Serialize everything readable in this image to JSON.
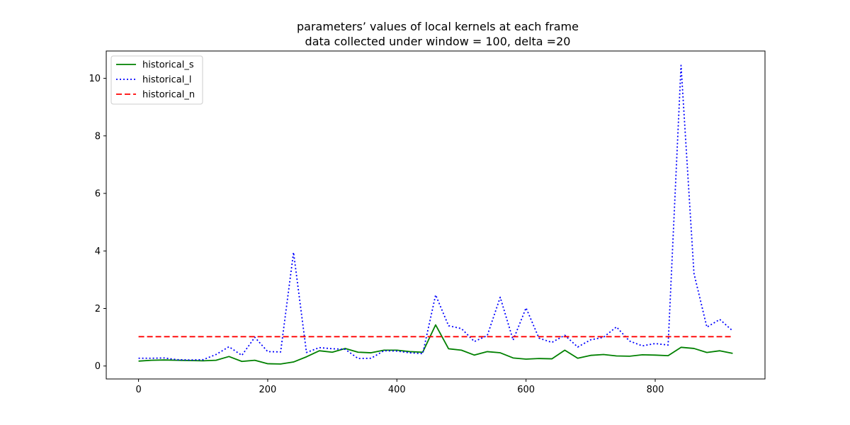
{
  "chart_data": {
    "type": "line",
    "title_lines": [
      "parameters’ values of local kernels at each frame",
      "data collected under window = 100, delta =20"
    ],
    "xlabel": "",
    "ylabel": "",
    "xlim": [
      -50,
      970
    ],
    "ylim": [
      -0.45,
      10.95
    ],
    "xticks": [
      0,
      200,
      400,
      600,
      800
    ],
    "yticks": [
      0,
      2,
      4,
      6,
      8,
      10
    ],
    "grid": false,
    "legend_position": "top-left",
    "x": [
      0,
      20,
      40,
      60,
      80,
      100,
      120,
      140,
      160,
      180,
      200,
      220,
      240,
      260,
      280,
      300,
      320,
      340,
      360,
      380,
      400,
      420,
      440,
      460,
      480,
      500,
      520,
      540,
      560,
      580,
      600,
      620,
      640,
      660,
      680,
      700,
      720,
      740,
      760,
      780,
      800,
      820,
      840,
      860,
      880,
      900,
      920
    ],
    "series": [
      {
        "name": "historical_s",
        "color": "#008000",
        "style": "solid",
        "values": [
          0.17,
          0.2,
          0.21,
          0.2,
          0.19,
          0.18,
          0.2,
          0.33,
          0.16,
          0.2,
          0.08,
          0.07,
          0.14,
          0.32,
          0.53,
          0.48,
          0.61,
          0.48,
          0.46,
          0.55,
          0.55,
          0.5,
          0.48,
          1.43,
          0.6,
          0.55,
          0.38,
          0.5,
          0.46,
          0.28,
          0.24,
          0.26,
          0.25,
          0.55,
          0.27,
          0.37,
          0.4,
          0.35,
          0.34,
          0.39,
          0.38,
          0.36,
          0.65,
          0.61,
          0.47,
          0.53,
          0.44
        ]
      },
      {
        "name": "historical_l",
        "color": "#0000ff",
        "style": "dotted",
        "values": [
          0.27,
          0.27,
          0.28,
          0.22,
          0.21,
          0.22,
          0.4,
          0.67,
          0.37,
          1.0,
          0.5,
          0.49,
          3.95,
          0.47,
          0.64,
          0.6,
          0.58,
          0.26,
          0.27,
          0.53,
          0.52,
          0.46,
          0.43,
          2.47,
          1.4,
          1.3,
          0.85,
          1.06,
          2.39,
          0.9,
          2.02,
          0.97,
          0.82,
          1.07,
          0.66,
          0.91,
          1.0,
          1.36,
          0.87,
          0.7,
          0.78,
          0.73,
          10.45,
          3.22,
          1.35,
          1.62,
          1.22
        ]
      },
      {
        "name": "historical_n",
        "color": "#ff0000",
        "style": "dashed",
        "values": [
          1.02,
          1.02,
          1.02,
          1.02,
          1.02,
          1.02,
          1.02,
          1.02,
          1.02,
          1.02,
          1.02,
          1.02,
          1.02,
          1.02,
          1.02,
          1.02,
          1.02,
          1.02,
          1.02,
          1.02,
          1.02,
          1.02,
          1.02,
          1.02,
          1.02,
          1.02,
          1.02,
          1.02,
          1.02,
          1.02,
          1.02,
          1.02,
          1.02,
          1.02,
          1.02,
          1.02,
          1.02,
          1.02,
          1.02,
          1.02,
          1.02,
          1.02,
          1.02,
          1.02,
          1.02,
          1.02,
          1.02
        ]
      }
    ]
  }
}
